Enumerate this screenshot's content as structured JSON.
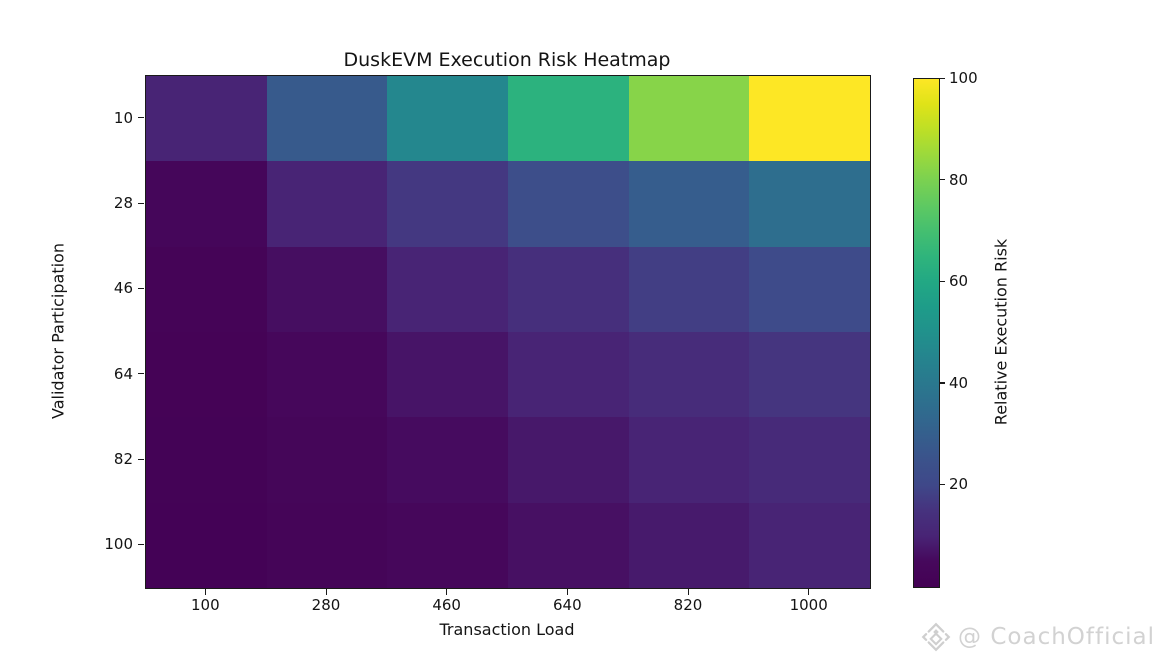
{
  "title": "DuskEVM Execution Risk Heatmap",
  "watermark": {
    "handle": "@ CoachOfficial",
    "icon": "diamond-logo-icon",
    "color": "#d2d2d2"
  },
  "colors": {
    "background": "#ffffff",
    "text": "#141414",
    "spine": "#1a1a1a"
  },
  "chart_data": {
    "type": "heatmap",
    "title": "DuskEVM Execution Risk Heatmap",
    "xlabel": "Transaction Load",
    "ylabel": "Validator Participation",
    "x_ticks": [
      "100",
      "280",
      "460",
      "640",
      "820",
      "1000"
    ],
    "y_ticks": [
      "10",
      "28",
      "46",
      "64",
      "82",
      "100"
    ],
    "values": [
      [
        10.0,
        28.0,
        46.0,
        64.0,
        82.0,
        100.0
      ],
      [
        3.57,
        10.0,
        16.43,
        22.86,
        29.29,
        35.71
      ],
      [
        2.17,
        6.09,
        10.0,
        13.91,
        17.83,
        21.74
      ],
      [
        1.56,
        4.38,
        7.19,
        10.0,
        12.81,
        15.63
      ],
      [
        1.22,
        3.41,
        5.61,
        7.8,
        10.0,
        12.2
      ],
      [
        1.0,
        2.8,
        4.6,
        6.4,
        8.2,
        10.0
      ]
    ],
    "vmin": 0,
    "vmax": 100,
    "grid": false,
    "colormap": "viridis",
    "colormap_stops": [
      [
        0.0,
        "#440154"
      ],
      [
        0.05,
        "#46085c"
      ],
      [
        0.1,
        "#482475"
      ],
      [
        0.15,
        "#46327e"
      ],
      [
        0.2,
        "#3f4889"
      ],
      [
        0.25,
        "#3b528b"
      ],
      [
        0.3,
        "#355f8d"
      ],
      [
        0.35,
        "#2f6c8e"
      ],
      [
        0.4,
        "#2a788e"
      ],
      [
        0.45,
        "#25848e"
      ],
      [
        0.5,
        "#21918c"
      ],
      [
        0.55,
        "#1e9c89"
      ],
      [
        0.6,
        "#22a884"
      ],
      [
        0.65,
        "#2fb47c"
      ],
      [
        0.7,
        "#44bf70"
      ],
      [
        0.75,
        "#5ec962"
      ],
      [
        0.8,
        "#7ad151"
      ],
      [
        0.85,
        "#9bd93c"
      ],
      [
        0.9,
        "#bddf26"
      ],
      [
        0.95,
        "#dfe318"
      ],
      [
        1.0,
        "#fde725"
      ]
    ],
    "colorbar": {
      "label": "Relative Execution Risk",
      "ticks": [
        20,
        40,
        60,
        80,
        100
      ],
      "position": "right"
    }
  }
}
